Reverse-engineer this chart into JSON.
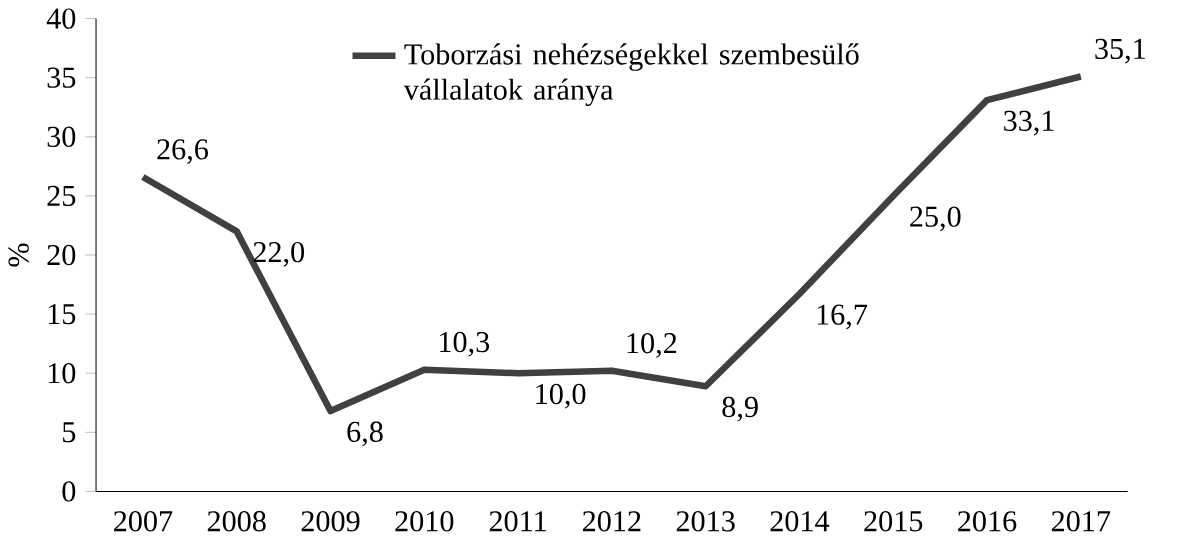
{
  "chart_data": {
    "type": "line",
    "ylabel": "%",
    "categories": [
      "2007",
      "2008",
      "2009",
      "2010",
      "2011",
      "2012",
      "2013",
      "2014",
      "2015",
      "2016",
      "2017"
    ],
    "series": [
      {
        "name": "Toborzási nehézségekkel szembesülő vállalatok aránya",
        "color": "#404040",
        "values": [
          26.6,
          22.0,
          6.8,
          10.3,
          10.0,
          10.2,
          8.9,
          16.7,
          25.0,
          33.1,
          35.1
        ],
        "value_labels": [
          "26,6",
          "22,0",
          "6,8",
          "10,3",
          "10,0",
          "10,2",
          "8,9",
          "16,7",
          "25,0",
          "33,1",
          "35,1"
        ]
      }
    ],
    "ylim": [
      0,
      40
    ],
    "yticks": [
      0,
      5,
      10,
      15,
      20,
      25,
      30,
      35,
      40
    ],
    "legend": "top"
  }
}
